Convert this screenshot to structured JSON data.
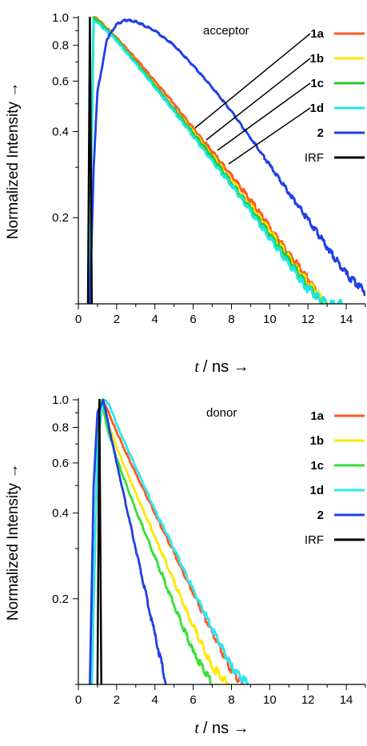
{
  "chart_data": [
    {
      "type": "line",
      "annotation": "acceptor",
      "xlabel": "t / ns →",
      "ylabel": "Normalized Intensity →",
      "xlim": [
        0,
        15
      ],
      "ylim": [
        0.1,
        1.0
      ],
      "y_scale": "log",
      "x_ticks": [
        "0",
        "2",
        "4",
        "6",
        "8",
        "10",
        "12",
        "14"
      ],
      "y_ticks": [
        "1.0",
        "0.8",
        "0.6",
        "0.4",
        "0.2"
      ],
      "legend_position": "top-right",
      "series": [
        {
          "name": "1a",
          "color": "#ff5a1f",
          "x": [
            0.55,
            0.8,
            1,
            2,
            3,
            4,
            5,
            6,
            7,
            8,
            9,
            10,
            11,
            12,
            12.6
          ],
          "y": [
            0.1,
            1.0,
            0.99,
            0.85,
            0.72,
            0.6,
            0.5,
            0.41,
            0.34,
            0.28,
            0.23,
            0.185,
            0.15,
            0.122,
            0.106
          ]
        },
        {
          "name": "1b",
          "color": "#ffe800",
          "x": [
            0.55,
            0.8,
            1,
            2,
            3,
            4,
            5,
            6,
            7,
            8,
            9,
            10,
            11,
            12,
            13
          ],
          "y": [
            0.1,
            1.0,
            0.98,
            0.84,
            0.7,
            0.58,
            0.48,
            0.4,
            0.33,
            0.27,
            0.22,
            0.18,
            0.145,
            0.118,
            0.1
          ]
        },
        {
          "name": "1c",
          "color": "#2ec52e",
          "x": [
            0.55,
            0.8,
            1,
            2,
            3,
            4,
            5,
            6,
            7,
            8,
            9,
            10,
            11,
            12,
            12.8
          ],
          "y": [
            0.1,
            1.0,
            0.98,
            0.84,
            0.7,
            0.58,
            0.48,
            0.395,
            0.325,
            0.265,
            0.215,
            0.175,
            0.142,
            0.115,
            0.1
          ]
        },
        {
          "name": "1d",
          "color": "#1de6e6",
          "x": [
            0.55,
            0.8,
            1,
            2,
            3,
            4,
            5,
            6,
            7,
            8,
            9,
            10,
            11,
            12,
            13,
            13.8
          ],
          "y": [
            0.1,
            0.98,
            0.96,
            0.83,
            0.69,
            0.57,
            0.47,
            0.385,
            0.315,
            0.26,
            0.21,
            0.17,
            0.138,
            0.112,
            0.1,
            0.1
          ]
        },
        {
          "name": "2",
          "color": "#1f3fe6",
          "x": [
            0.6,
            0.8,
            1,
            1.5,
            2,
            2.5,
            3,
            4,
            5,
            6,
            7,
            8,
            9,
            10,
            11,
            12,
            13,
            14,
            15
          ],
          "y": [
            0.1,
            0.3,
            0.55,
            0.84,
            0.95,
            0.98,
            0.97,
            0.9,
            0.8,
            0.68,
            0.57,
            0.47,
            0.38,
            0.305,
            0.245,
            0.197,
            0.158,
            0.127,
            0.11
          ]
        },
        {
          "name": "IRF",
          "color": "#000000",
          "x": [
            0.5,
            0.6,
            0.7
          ],
          "y": [
            0.1,
            1.0,
            0.1
          ]
        }
      ],
      "annotation_lines": true
    },
    {
      "type": "line",
      "annotation": "donor",
      "xlabel": "t / ns →",
      "ylabel": "Normalized Intensity →",
      "xlim": [
        0,
        15
      ],
      "ylim": [
        0.1,
        1.0
      ],
      "y_scale": "log",
      "x_ticks": [
        "0",
        "2",
        "4",
        "6",
        "8",
        "10",
        "12",
        "14"
      ],
      "y_ticks": [
        "1.0",
        "0.8",
        "0.6",
        "0.4",
        "0.2"
      ],
      "legend_position": "top-right",
      "series": [
        {
          "name": "1a",
          "color": "#ff5a1f",
          "x": [
            0.7,
            1.0,
            1.2,
            1.5,
            2,
            3,
            4,
            5,
            6,
            7,
            8,
            8.6
          ],
          "y": [
            0.1,
            0.7,
            1.0,
            0.93,
            0.77,
            0.55,
            0.4,
            0.29,
            0.21,
            0.152,
            0.112,
            0.1
          ]
        },
        {
          "name": "1b",
          "color": "#ffe800",
          "x": [
            0.7,
            1.0,
            1.2,
            1.5,
            2,
            3,
            4,
            5,
            6,
            7,
            7.9
          ],
          "y": [
            0.1,
            0.7,
            1.0,
            0.85,
            0.68,
            0.47,
            0.33,
            0.23,
            0.16,
            0.115,
            0.1
          ]
        },
        {
          "name": "1c",
          "color": "#35e035",
          "x": [
            0.7,
            1.0,
            1.2,
            1.5,
            2,
            3,
            4,
            5,
            6,
            7
          ],
          "y": [
            0.1,
            0.7,
            1.0,
            0.8,
            0.62,
            0.41,
            0.28,
            0.19,
            0.13,
            0.1
          ]
        },
        {
          "name": "1d",
          "color": "#2ee6f2",
          "x": [
            0.7,
            1.0,
            1.3,
            1.6,
            2,
            3,
            4,
            5,
            6,
            7,
            8,
            8.9
          ],
          "y": [
            0.1,
            0.7,
            1.0,
            0.97,
            0.82,
            0.58,
            0.41,
            0.3,
            0.215,
            0.157,
            0.115,
            0.1
          ]
        },
        {
          "name": "2",
          "color": "#1f3fe6",
          "x": [
            0.6,
            0.8,
            1.0,
            1.3,
            2,
            3,
            4,
            4.6
          ],
          "y": [
            0.1,
            0.5,
            0.9,
            1.0,
            0.6,
            0.3,
            0.15,
            0.1
          ]
        },
        {
          "name": "IRF",
          "color": "#000000",
          "x": [
            1.0,
            1.1,
            1.2
          ],
          "y": [
            0.1,
            1.0,
            0.1
          ]
        }
      ]
    }
  ]
}
